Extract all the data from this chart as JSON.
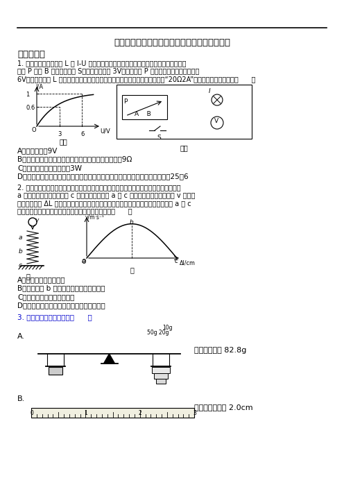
{
  "title": "江苏省江阴一中重点高中提前招生物理试卷答案",
  "section1": "一、选择题",
  "q1_line1": "1. 如图甲所示是小灯泡 L 的 I-U 图象，把小灯泡接入图乙的电路中，先将滑动变阔器的",
  "q1_line2": "滑片 P 移至 B 端，闭合开关 S，电压表示数为 3V；再将滑片 P 向左移动直到电压表示数为",
  "q1_line3": "6V，此时小灯泡 L 刚好正常发光。已知电源电压恒定，滑动变阔器的铭牌标有“20Ω2A”，则下列说法正确的是（      ）",
  "q1_optA": "A．电源电压为9V",
  "q1_optB": "B．小灯泡正常发光时，滑动变阔器接入电路的电阔为9Ω",
  "q1_optC": "C．小灯泡的额定电功率为3W",
  "q1_optD": "D．在滑动变阔器移动的过程中，电路中消耗的总功率的最大值和最小值之比为25：6",
  "q2_line1": "2. 如图甲，小球从某高度处由静止下落到竖直放置的轻质弹簧上并压缩弹簧，已知小球从",
  "q2_line2": "a 处开始接触弹簧，压缩至 c 处时弹簧最短，从 a 至 c 处的过程中，小球的速度 v 和弹簧",
  "q2_line3": "被压缩的长度 ΔL 之间的关系如图乙，且在整个过程中弹簧始终发生弹性形变，则从 a 至 c",
  "q2_line4": "处的过程中（不计空气阻力），下列说法中正确的是（      ）",
  "q2_optA": "A．小球的惯性不断减小",
  "q2_optB": "B．小球到达 b 处时，其所受的合力不为零",
  "q2_optC": "C．弹簧的弹性势能不断增大",
  "q2_optD": "D．小球所受的重力始终大于弹簧产生的弹力",
  "q3_text": "3. 下列工具读数正确的是（      ）",
  "q3_optA_desc": "天平的读数是 82.8g",
  "q3_optB_desc": "刻度尺的读数是 2.0cm",
  "bg_color": "#ffffff"
}
